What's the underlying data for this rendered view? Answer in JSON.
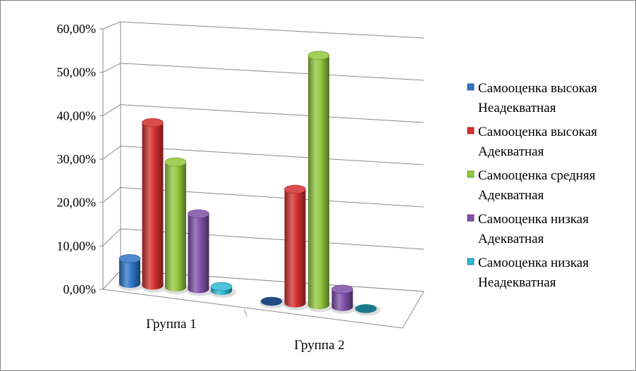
{
  "chart_data": {
    "type": "bar",
    "categories": [
      "Группа 1",
      "Группа 2"
    ],
    "series": [
      {
        "name": "Самооценка высокая Неадекватная",
        "legend_lines": [
          "Самооценка высокая",
          "Неадекватная"
        ],
        "values": [
          6,
          0
        ],
        "color": "#2e75c9"
      },
      {
        "name": "Самооценка высокая Адекватная",
        "legend_lines": [
          "Самооценка высокая",
          "Адекватная"
        ],
        "values": [
          39,
          26
        ],
        "color": "#d42f2f"
      },
      {
        "name": "Самооценка средняя Адекватная",
        "legend_lines": [
          "Самооценка средняя",
          "Адекватная"
        ],
        "values": [
          30,
          57
        ],
        "color": "#92c83e"
      },
      {
        "name": "Самооценка низкая Адекватная",
        "legend_lines": [
          "Самооценка низкая",
          "Адекватная"
        ],
        "values": [
          18,
          4
        ],
        "color": "#7d4fa8"
      },
      {
        "name": "Самооценка низкая Неадекватная",
        "legend_lines": [
          "Самооценка низкая",
          "Неадекватная"
        ],
        "values": [
          1,
          0
        ],
        "color": "#2bb9d6"
      }
    ],
    "y_ticks": [
      "0,00%",
      "10,00%",
      "20,00%",
      "30,00%",
      "40,00%",
      "50,00%",
      "60,00%"
    ],
    "ylim": [
      0,
      60
    ],
    "title": "",
    "xlabel": "",
    "ylabel": "",
    "grid": true,
    "legend_position": "right",
    "style": "3d-cylinder"
  }
}
